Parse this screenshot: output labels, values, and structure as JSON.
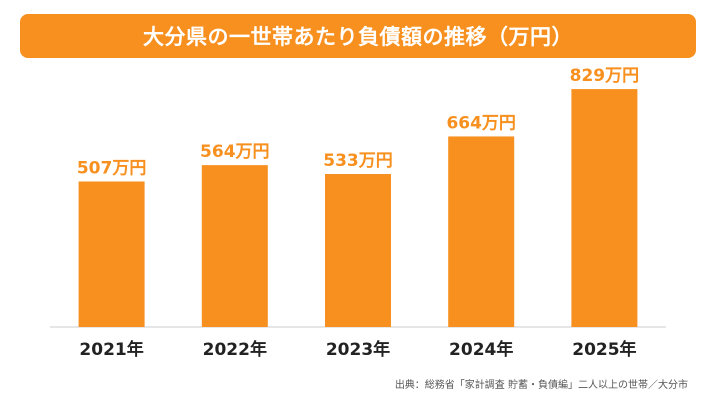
{
  "title": "大分県の一世帯あたり負債額の推移（万円）",
  "source": "出典：総務省「家計調査 貯蓄・負債編」二人以上の世帯／大分市",
  "colors": {
    "accent": "#f7901e",
    "text": "#222222",
    "value_label": "#f7901e"
  },
  "chart_data": {
    "type": "bar",
    "categories": [
      "2021年",
      "2022年",
      "2023年",
      "2024年",
      "2025年"
    ],
    "values": [
      507,
      564,
      533,
      664,
      829
    ],
    "value_labels": [
      "507万円",
      "564万円",
      "533万円",
      "664万円",
      "829万円"
    ],
    "title": "大分県の一世帯あたり負債額の推移（万円）",
    "xlabel": "",
    "ylabel": "",
    "ylim": [
      0,
      1000
    ],
    "grid": false,
    "legend": "none"
  }
}
